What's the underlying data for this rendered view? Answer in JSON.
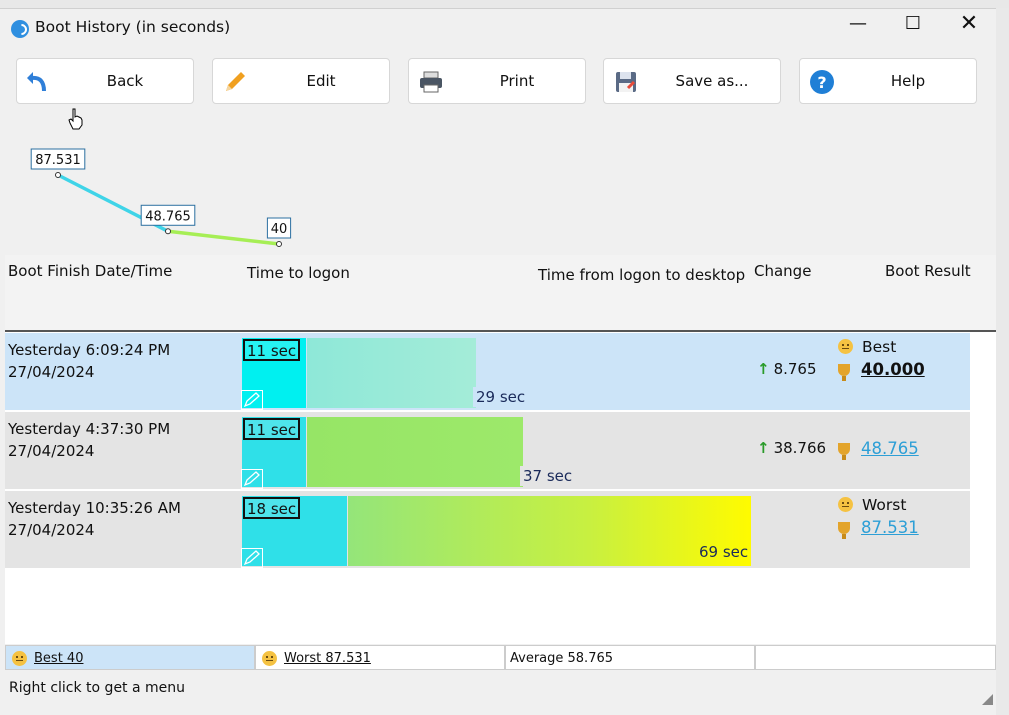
{
  "window": {
    "title": "Boot History (in seconds)"
  },
  "toolbar": {
    "back": "Back",
    "edit": "Edit",
    "print": "Print",
    "save": "Save as...",
    "help": "Help"
  },
  "chart_data": {
    "type": "line",
    "x": [
      "Yesterday 10:35:26 AM",
      "Yesterday 4:37:30 PM",
      "Yesterday 6:09:24 PM"
    ],
    "values": [
      87.531,
      48.765,
      40
    ],
    "data_labels": [
      "87.531",
      "48.765",
      "40"
    ],
    "colors": [
      "#3fd4e8",
      "#a6ee55"
    ]
  },
  "table": {
    "headers": {
      "date": "Boot Finish Date/Time",
      "logon": "Time to logon",
      "desktop": "Time from logon to desktop",
      "change": "Change",
      "result": "Boot Result"
    },
    "rows": [
      {
        "time": "Yesterday  6:09:24 PM",
        "date": "27/04/2024",
        "logon_label": "11 sec",
        "logon_sec": 11,
        "desktop_label": "29 sec",
        "desktop_sec": 29,
        "change": "8.765",
        "result_tag": "Best",
        "result": "40.000",
        "bg": "#cce4f8"
      },
      {
        "time": "Yesterday  4:37:30 PM",
        "date": "27/04/2024",
        "logon_label": "11 sec",
        "logon_sec": 11,
        "desktop_label": "37 sec",
        "desktop_sec": 37,
        "change": "38.766",
        "result_tag": "",
        "result": "48.765",
        "bg": "#e4e4e4"
      },
      {
        "time": "Yesterday  10:35:26 AM",
        "date": "27/04/2024",
        "logon_label": "18 sec",
        "logon_sec": 18,
        "desktop_label": "69 sec",
        "desktop_sec": 69,
        "change": "",
        "result_tag": "Worst",
        "result": "87.531",
        "bg": "#e4e4e4"
      }
    ]
  },
  "footer": {
    "best": "Best 40",
    "worst": "Worst 87.531",
    "average": "Average 58.765"
  },
  "status": "Right click to get a menu"
}
